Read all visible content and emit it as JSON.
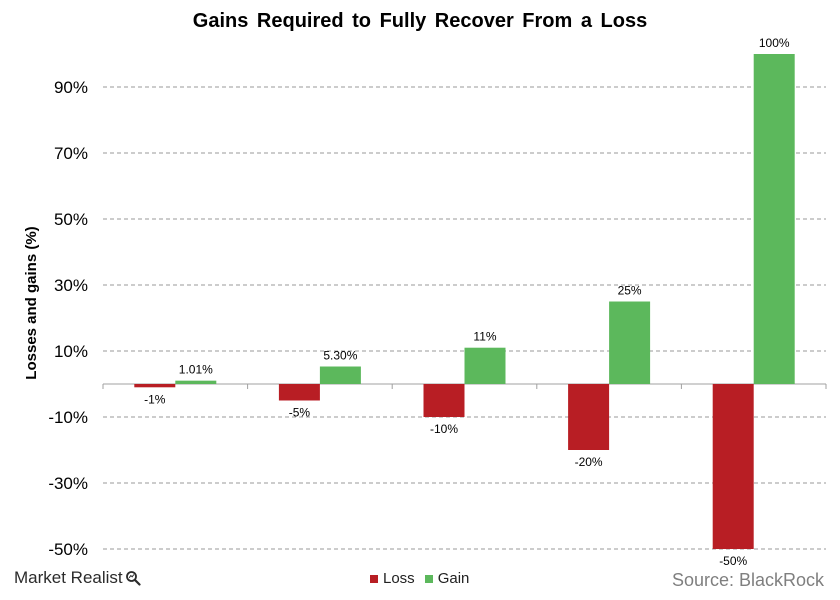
{
  "chart_data": {
    "type": "bar",
    "title": "Gains Required to Fully Recover From a Loss",
    "xlabel": "",
    "ylabel": "Losses and gains (%)",
    "ylim": [
      -50,
      100
    ],
    "yticks": [
      -50,
      -30,
      -10,
      10,
      30,
      50,
      70,
      90
    ],
    "ytick_labels": [
      "-50%",
      "-30%",
      "-10%",
      "10%",
      "30%",
      "50%",
      "70%",
      "90%"
    ],
    "grid": true,
    "legend_position": "bottom",
    "categories": [
      "",
      "",
      "",
      "",
      ""
    ],
    "series": [
      {
        "name": "Loss",
        "color": "#B81E24",
        "values": [
          -1,
          -5,
          -10,
          -20,
          -50
        ],
        "labels": [
          "-1%",
          "-5%",
          "-10%",
          "-20%",
          "-50%"
        ]
      },
      {
        "name": "Gain",
        "color": "#5CB85C",
        "values": [
          1.01,
          5.3,
          11,
          25,
          100
        ],
        "labels": [
          "1.01%",
          "5.30%",
          "11%",
          "25%",
          "100%"
        ]
      }
    ]
  },
  "footer": {
    "brand": "Market Realist",
    "brand_icon": "magnifier-icon",
    "source": "Source: BlackRock"
  }
}
